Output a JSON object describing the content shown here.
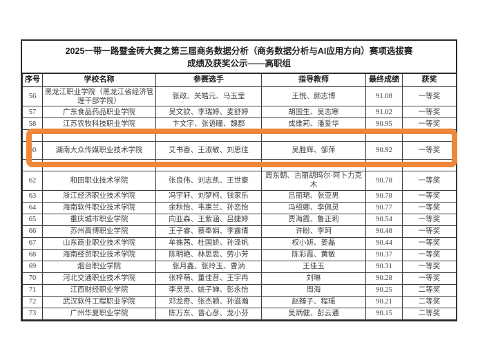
{
  "document": {
    "title_line1": "2025一带一路暨金砖大赛之第三届商务数据分析（商务数据分析与AI应用方向）赛项选拔赛",
    "title_line2": "成绩及获奖公示——高职组"
  },
  "table": {
    "headers": {
      "seq": "序号",
      "school": "学校名称",
      "participants": "参赛选手",
      "instructors": "指导教师",
      "score": "最终成绩",
      "award": "获奖"
    },
    "rows": [
      {
        "seq": "56",
        "school": "黑龙江职业学院（黑龙江省经济管理干部学院）",
        "participants": "张政、关皓元、马玉莹",
        "instructors": "王悦、颜志博",
        "score": "91.08",
        "award": "一等奖",
        "highlighted": false,
        "obscured": false
      },
      {
        "seq": "57",
        "school": "广东食品药品职业学院",
        "participants": "吴文钦、李瑞婷、麦舒婷",
        "instructors": "胡国生、吴志寒",
        "score": "91.02",
        "award": "一等奖",
        "highlighted": false,
        "obscured": false
      },
      {
        "seq": "58",
        "school": "江苏农牧科技职业学院",
        "participants": "卞文宇、张语瞳、魏郡",
        "instructors": "成维莉、潘爱华",
        "score": "90.95",
        "award": "一等奖",
        "highlighted": false,
        "obscured": false
      },
      {
        "seq": "",
        "school": "",
        "participants": "",
        "instructors": "",
        "score": "",
        "award": "",
        "highlighted": false,
        "obscured": true
      },
      {
        "seq": "60",
        "school": "湖南大众传媒职业技术学院",
        "participants": "艾书香、王淑敏、刘思佳",
        "instructors": "吴胜辉、邹萍",
        "score": "90.92",
        "award": "一等奖",
        "highlighted": true,
        "obscured": false
      },
      {
        "seq": "",
        "school": "",
        "participants": "",
        "instructors": "",
        "score": "",
        "award": "",
        "highlighted": false,
        "obscured": true
      },
      {
        "seq": "62",
        "school": "和田职业技术学院",
        "participants": "张良伟、刘志凯、王世豪",
        "instructors": "周东朝、古丽胡玛尔·阿卜力克木",
        "score": "90.78",
        "award": "一等奖",
        "highlighted": false,
        "obscured": false
      },
      {
        "seq": "63",
        "school": "浙江经济职业技术学院",
        "participants": "冯宇轩、刘梦柯、钱家乐",
        "instructors": "吕丽珺、张亚男",
        "score": "90.78",
        "award": "一等奖",
        "highlighted": false,
        "obscured": false
      },
      {
        "seq": "64",
        "school": "海南软件职业技术学院",
        "participants": "余秋怡、韦惠兰、孙恋怡",
        "instructors": "冯绍娜、李佩灵",
        "score": "90.77",
        "award": "一等奖",
        "highlighted": false,
        "obscured": false
      },
      {
        "seq": "65",
        "school": "重庆城市职业学院",
        "participants": "向亚森、王紫涵、吕婕婷",
        "instructors": "贾海霞、鲁正莉",
        "score": "90.54",
        "award": "一等奖",
        "highlighted": false,
        "obscured": false
      },
      {
        "seq": "66",
        "school": "苏州高博职业学院",
        "participants": "王子睿、蔡奉娟、李露倩",
        "instructors": "许盼、李珂",
        "score": "90.48",
        "award": "一等奖",
        "highlighted": false,
        "obscured": false
      },
      {
        "seq": "67",
        "school": "山东商业职业技术学院",
        "participants": "牟姝茜、杜国娇、孙泽帆",
        "instructors": "权小妍、姜磊",
        "score": "90.44",
        "award": "一等奖",
        "highlighted": false,
        "obscured": false
      },
      {
        "seq": "68",
        "school": "海南经贸职业技术学院",
        "participants": "陈明艳、林思思、劳小芳",
        "instructors": "陈彩霞、黄敏",
        "score": "90.37",
        "award": "一等奖",
        "highlighted": false,
        "obscured": false
      },
      {
        "seq": "69",
        "school": "烟台职业学院",
        "participants": "张月鑫、张玲玉、曹汭",
        "instructors": "王佳玉",
        "score": "90.31",
        "award": "一等奖",
        "highlighted": false,
        "obscured": false
      },
      {
        "seq": "70",
        "school": "河北交通职业技术学院",
        "participants": "张梓萌、董佳音、王宇冉",
        "instructors": "刘琳",
        "score": "90.28",
        "award": "一等奖",
        "highlighted": false,
        "obscured": false
      },
      {
        "seq": "71",
        "school": "江西财经职业学院",
        "participants": "李灵灵、姚子婵、彭永怡",
        "instructors": "周海",
        "score": "90.25",
        "award": "二等奖",
        "highlighted": false,
        "obscured": false
      },
      {
        "seq": "72",
        "school": "武汉软件工程职业学院",
        "participants": "邓龙奇、张杰颖、孙滋瀚",
        "instructors": "赵臻子、程瑶",
        "score": "90.21",
        "award": "二等奖",
        "highlighted": false,
        "obscured": false
      },
      {
        "seq": "73",
        "school": "广州华夏职业学院",
        "participants": "陈万东、曾心彦、龙小芬",
        "instructors": "吴炳健、彭云通",
        "score": "90.15",
        "award": "二等奖",
        "highlighted": false,
        "obscured": false
      }
    ]
  },
  "annotation": {
    "highlight_color": "#f0863a",
    "highlighted_row_seq": "60"
  }
}
